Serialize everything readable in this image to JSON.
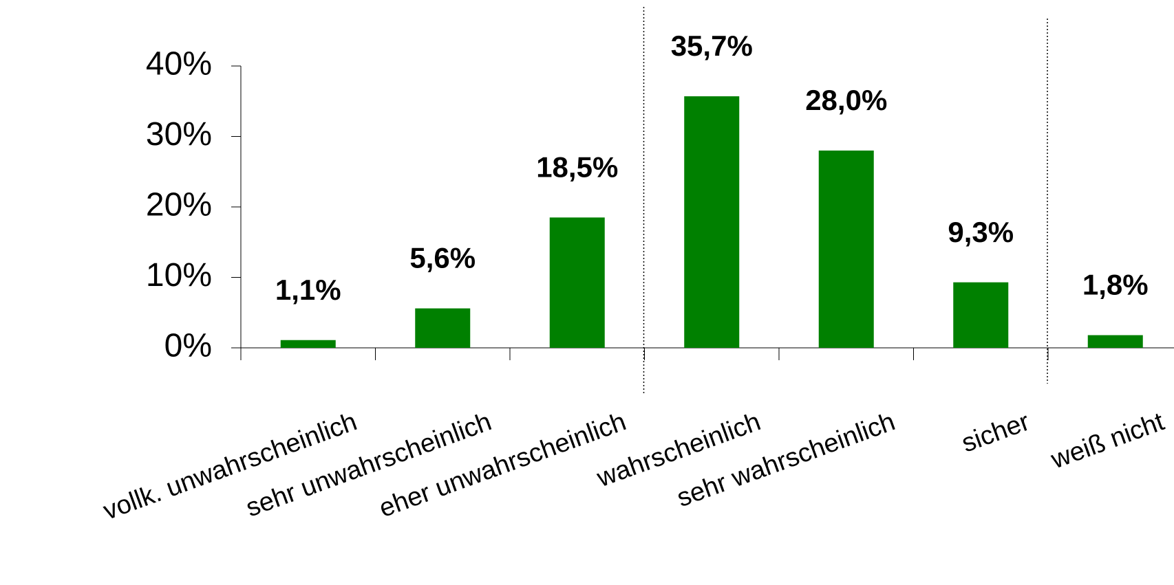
{
  "chart_data": {
    "type": "bar",
    "categories": [
      "vollk. unwahrscheinlich",
      "sehr unwahrscheinlich",
      "eher unwahrscheinlich",
      "wahrscheinlich",
      "sehr wahrscheinlich",
      "sicher",
      "weiß nicht"
    ],
    "values": [
      1.1,
      5.6,
      18.5,
      35.7,
      28.0,
      9.3,
      1.8
    ],
    "value_labels": [
      "1,1%",
      "5,6%",
      "18,5%",
      "35,7%",
      "28,0%",
      "9,3%",
      "1,8%"
    ],
    "color": "#008000",
    "ylim": [
      0,
      40
    ],
    "yticks": [
      {
        "value": 0,
        "label": "0%"
      },
      {
        "value": 10,
        "label": "10%"
      },
      {
        "value": 20,
        "label": "20%"
      },
      {
        "value": 30,
        "label": "30%"
      },
      {
        "value": 40,
        "label": "40%"
      }
    ]
  }
}
